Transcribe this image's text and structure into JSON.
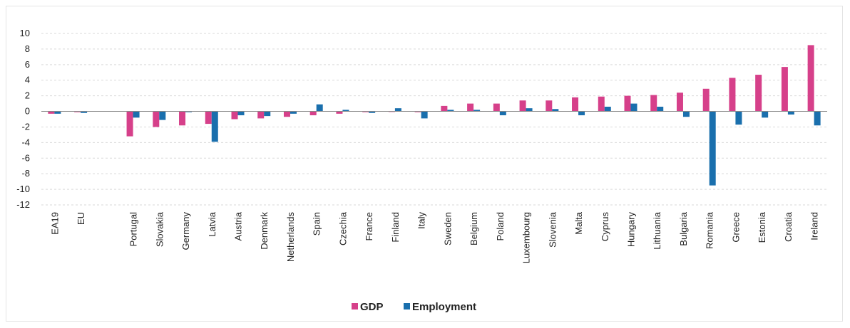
{
  "chart_data": {
    "type": "bar",
    "categories": [
      "EA19",
      "EU",
      "",
      "Portugal",
      "Slovakia",
      "Germany",
      "Latvia",
      "Austria",
      "Denmark",
      "Netherlands",
      "Spain",
      "Czechia",
      "France",
      "Finland",
      "Italy",
      "Sweden",
      "Belgium",
      "Poland",
      "Luxembourg",
      "Slovenia",
      "Malta",
      "Cyprus",
      "Hungary",
      "Lithuania",
      "Bulgaria",
      "Romania",
      "Greece",
      "Estonia",
      "Croatia",
      "Ireland"
    ],
    "series": [
      {
        "name": "GDP",
        "color": "#d6408a",
        "values": [
          -0.3,
          -0.1,
          null,
          -3.2,
          -2.0,
          -1.8,
          -1.6,
          -1.0,
          -0.9,
          -0.7,
          -0.5,
          -0.3,
          -0.1,
          0.0,
          -0.1,
          0.7,
          1.0,
          1.0,
          1.4,
          1.4,
          1.8,
          1.9,
          2.0,
          2.1,
          2.4,
          2.9,
          4.3,
          4.7,
          5.7,
          8.5
        ]
      },
      {
        "name": "Employment",
        "color": "#1a6fad",
        "values": [
          -0.3,
          -0.2,
          null,
          -0.8,
          -1.1,
          -0.1,
          -3.9,
          -0.5,
          -0.6,
          -0.3,
          0.9,
          0.2,
          -0.2,
          0.4,
          -0.9,
          0.2,
          0.2,
          -0.5,
          0.4,
          0.3,
          -0.5,
          0.6,
          1.0,
          0.6,
          -0.7,
          -9.5,
          -1.7,
          -0.8,
          -0.4,
          -1.8
        ]
      }
    ],
    "ylim": [
      -12,
      10
    ],
    "yticks": [
      10,
      8,
      6,
      4,
      2,
      0,
      -2,
      -4,
      -6,
      -8,
      -10,
      -12
    ],
    "grid": true,
    "legend": "bottom-center",
    "title": "",
    "xlabel": "",
    "ylabel": ""
  }
}
